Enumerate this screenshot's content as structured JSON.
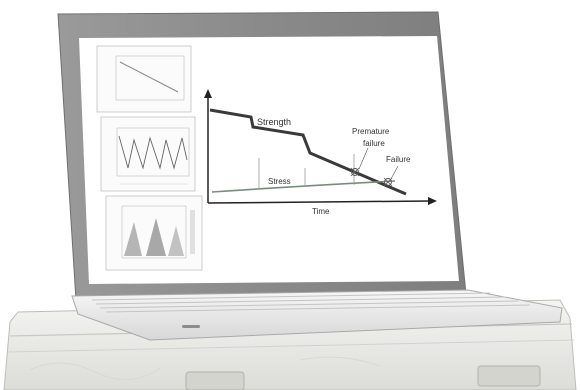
{
  "main_chart": {
    "strength_label": "Strength",
    "stress_label": "Stress",
    "premature_label_line1": "Premature",
    "premature_label_line2": "failure",
    "failure_label": "Failure",
    "x_axis_label": "Time"
  },
  "colors": {
    "strength_line": "#3a3a3a",
    "stress_line": "#7a8c7e",
    "bezel": "#8c8c8c",
    "screen": "#ffffff",
    "case": "#e9e9e6"
  }
}
